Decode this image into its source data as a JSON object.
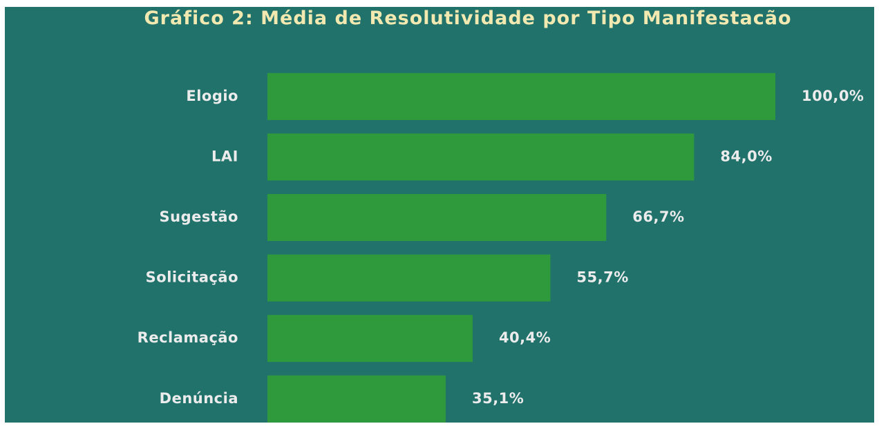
{
  "chart_data": {
    "type": "bar",
    "orientation": "horizontal",
    "title": "Gráfico 2: Média de Resolutividade por Tipo Manifestacão",
    "categories": [
      "Elogio",
      "LAI",
      "Sugestão",
      "Solicitação",
      "Reclamação",
      "Denúncia"
    ],
    "values": [
      100.0,
      84.0,
      66.7,
      55.7,
      40.4,
      35.1
    ],
    "value_labels": [
      "100,0%",
      "84,0%",
      "66,7%",
      "55,7%",
      "40,4%",
      "35,1%"
    ],
    "color": "#2f9a3b",
    "xlim": [
      0,
      100
    ]
  }
}
